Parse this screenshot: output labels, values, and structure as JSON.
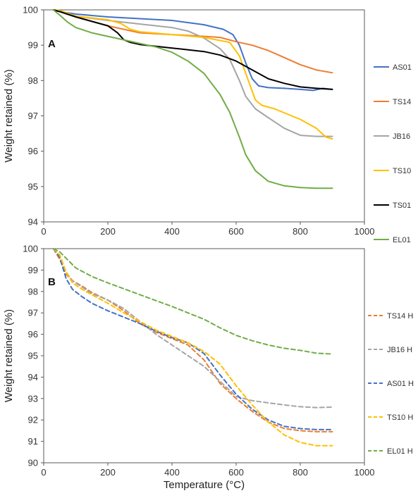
{
  "chart_data": [
    {
      "panel": "A",
      "type": "line",
      "xlabel": "",
      "ylabel": "Weight retained (%)",
      "xlim": [
        0,
        1000
      ],
      "ylim": [
        94,
        100
      ],
      "xticks": [
        0,
        200,
        400,
        600,
        800,
        1000
      ],
      "yticks": [
        94,
        95,
        96,
        97,
        98,
        99,
        100
      ],
      "legend": "right",
      "series": [
        {
          "name": "AS01",
          "color": "#4472C4",
          "dash": false,
          "x": [
            30,
            50,
            100,
            200,
            300,
            400,
            500,
            560,
            590,
            610,
            630,
            650,
            670,
            700,
            750,
            800,
            840,
            870,
            900
          ],
          "y": [
            100,
            99.95,
            99.88,
            99.8,
            99.75,
            99.7,
            99.58,
            99.45,
            99.3,
            99.0,
            98.5,
            98.05,
            97.85,
            97.8,
            97.78,
            97.75,
            97.72,
            97.78,
            97.75
          ]
        },
        {
          "name": "TS14",
          "color": "#ED7D31",
          "dash": false,
          "x": [
            30,
            50,
            100,
            200,
            300,
            400,
            500,
            550,
            600,
            650,
            700,
            750,
            800,
            850,
            900
          ],
          "y": [
            100,
            99.98,
            99.8,
            99.55,
            99.35,
            99.3,
            99.25,
            99.22,
            99.1,
            99.0,
            98.85,
            98.65,
            98.45,
            98.3,
            98.22
          ]
        },
        {
          "name": "JB16",
          "color": "#A5A5A5",
          "dash": false,
          "x": [
            30,
            50,
            100,
            200,
            300,
            400,
            450,
            500,
            550,
            580,
            610,
            630,
            660,
            700,
            750,
            800,
            850,
            900
          ],
          "y": [
            100,
            99.98,
            99.82,
            99.7,
            99.6,
            99.5,
            99.4,
            99.2,
            98.9,
            98.6,
            98.0,
            97.55,
            97.2,
            96.95,
            96.65,
            96.45,
            96.42,
            96.42
          ]
        },
        {
          "name": "TS10",
          "color": "#FFC000",
          "dash": false,
          "x": [
            30,
            50,
            100,
            200,
            240,
            270,
            300,
            400,
            500,
            580,
            610,
            640,
            660,
            680,
            720,
            760,
            800,
            850,
            880,
            900
          ],
          "y": [
            100,
            99.98,
            99.82,
            99.72,
            99.62,
            99.45,
            99.38,
            99.3,
            99.22,
            99.08,
            98.7,
            97.95,
            97.45,
            97.3,
            97.2,
            97.05,
            96.9,
            96.65,
            96.4,
            96.35
          ]
        },
        {
          "name": "TS01",
          "color": "#000000",
          "dash": false,
          "x": [
            30,
            50,
            100,
            200,
            230,
            250,
            270,
            300,
            400,
            500,
            550,
            600,
            650,
            700,
            750,
            800,
            850,
            900
          ],
          "y": [
            100,
            99.95,
            99.8,
            99.55,
            99.35,
            99.15,
            99.08,
            99.02,
            98.92,
            98.82,
            98.72,
            98.55,
            98.3,
            98.05,
            97.92,
            97.82,
            97.78,
            97.75
          ]
        },
        {
          "name": "EL01",
          "color": "#70AD47",
          "dash": false,
          "x": [
            30,
            50,
            75,
            100,
            150,
            200,
            250,
            300,
            350,
            400,
            450,
            500,
            550,
            580,
            610,
            630,
            660,
            700,
            750,
            800,
            850,
            900
          ],
          "y": [
            100,
            99.85,
            99.65,
            99.5,
            99.35,
            99.25,
            99.15,
            99.05,
            98.95,
            98.8,
            98.55,
            98.2,
            97.6,
            97.1,
            96.4,
            95.9,
            95.45,
            95.15,
            95.02,
            94.97,
            94.95,
            94.95
          ]
        }
      ]
    },
    {
      "panel": "B",
      "type": "line",
      "xlabel": "Temperature  (°C)",
      "ylabel": "Weight retained (%)",
      "xlim": [
        0,
        1000
      ],
      "ylim": [
        90,
        100
      ],
      "xticks": [
        0,
        200,
        400,
        600,
        800,
        1000
      ],
      "yticks": [
        90,
        91,
        92,
        93,
        94,
        95,
        96,
        97,
        98,
        99,
        100
      ],
      "legend": "right",
      "series": [
        {
          "name": "TS14 H",
          "color": "#ED7D31",
          "dash": true,
          "x": [
            30,
            50,
            70,
            90,
            120,
            150,
            200,
            250,
            300,
            350,
            400,
            450,
            500,
            550,
            600,
            650,
            700,
            750,
            800,
            850,
            900
          ],
          "y": [
            100,
            99.5,
            98.8,
            98.5,
            98.25,
            97.95,
            97.6,
            97.1,
            96.5,
            96.1,
            95.8,
            95.5,
            94.8,
            93.7,
            93.0,
            92.4,
            91.9,
            91.6,
            91.5,
            91.45,
            91.45
          ]
        },
        {
          "name": "JB16 H",
          "color": "#A5A5A5",
          "dash": true,
          "x": [
            30,
            50,
            70,
            90,
            120,
            150,
            200,
            250,
            300,
            350,
            400,
            450,
            500,
            550,
            600,
            650,
            700,
            750,
            800,
            850,
            900
          ],
          "y": [
            100,
            99.7,
            98.9,
            98.5,
            98.2,
            97.9,
            97.6,
            97.2,
            96.6,
            96.0,
            95.5,
            95.0,
            94.5,
            93.8,
            93.1,
            92.9,
            92.8,
            92.7,
            92.62,
            92.58,
            92.6
          ]
        },
        {
          "name": "AS01 H",
          "color": "#4472C4",
          "dash": true,
          "x": [
            30,
            50,
            70,
            90,
            120,
            150,
            200,
            250,
            300,
            350,
            400,
            450,
            500,
            550,
            600,
            650,
            700,
            750,
            800,
            850,
            900
          ],
          "y": [
            100,
            99.6,
            98.6,
            98.1,
            97.75,
            97.45,
            97.1,
            96.8,
            96.5,
            96.15,
            95.85,
            95.6,
            95.1,
            94.1,
            93.2,
            92.5,
            92.0,
            91.7,
            91.6,
            91.55,
            91.55
          ]
        },
        {
          "name": "TS10 H",
          "color": "#FFC000",
          "dash": true,
          "x": [
            30,
            50,
            70,
            90,
            120,
            150,
            200,
            250,
            300,
            350,
            400,
            450,
            500,
            550,
            600,
            650,
            700,
            750,
            800,
            850,
            900
          ],
          "y": [
            100,
            99.7,
            98.9,
            98.4,
            98.1,
            97.85,
            97.45,
            97.0,
            96.6,
            96.2,
            95.9,
            95.6,
            95.2,
            94.6,
            93.6,
            92.7,
            91.9,
            91.3,
            90.95,
            90.8,
            90.8
          ]
        },
        {
          "name": "EL01 H",
          "color": "#70AD47",
          "dash": true,
          "x": [
            30,
            50,
            100,
            150,
            200,
            300,
            400,
            500,
            550,
            600,
            650,
            700,
            750,
            800,
            850,
            900
          ],
          "y": [
            100,
            99.85,
            99.1,
            98.7,
            98.4,
            97.85,
            97.3,
            96.7,
            96.3,
            95.95,
            95.7,
            95.5,
            95.35,
            95.25,
            95.12,
            95.08
          ]
        }
      ]
    }
  ]
}
